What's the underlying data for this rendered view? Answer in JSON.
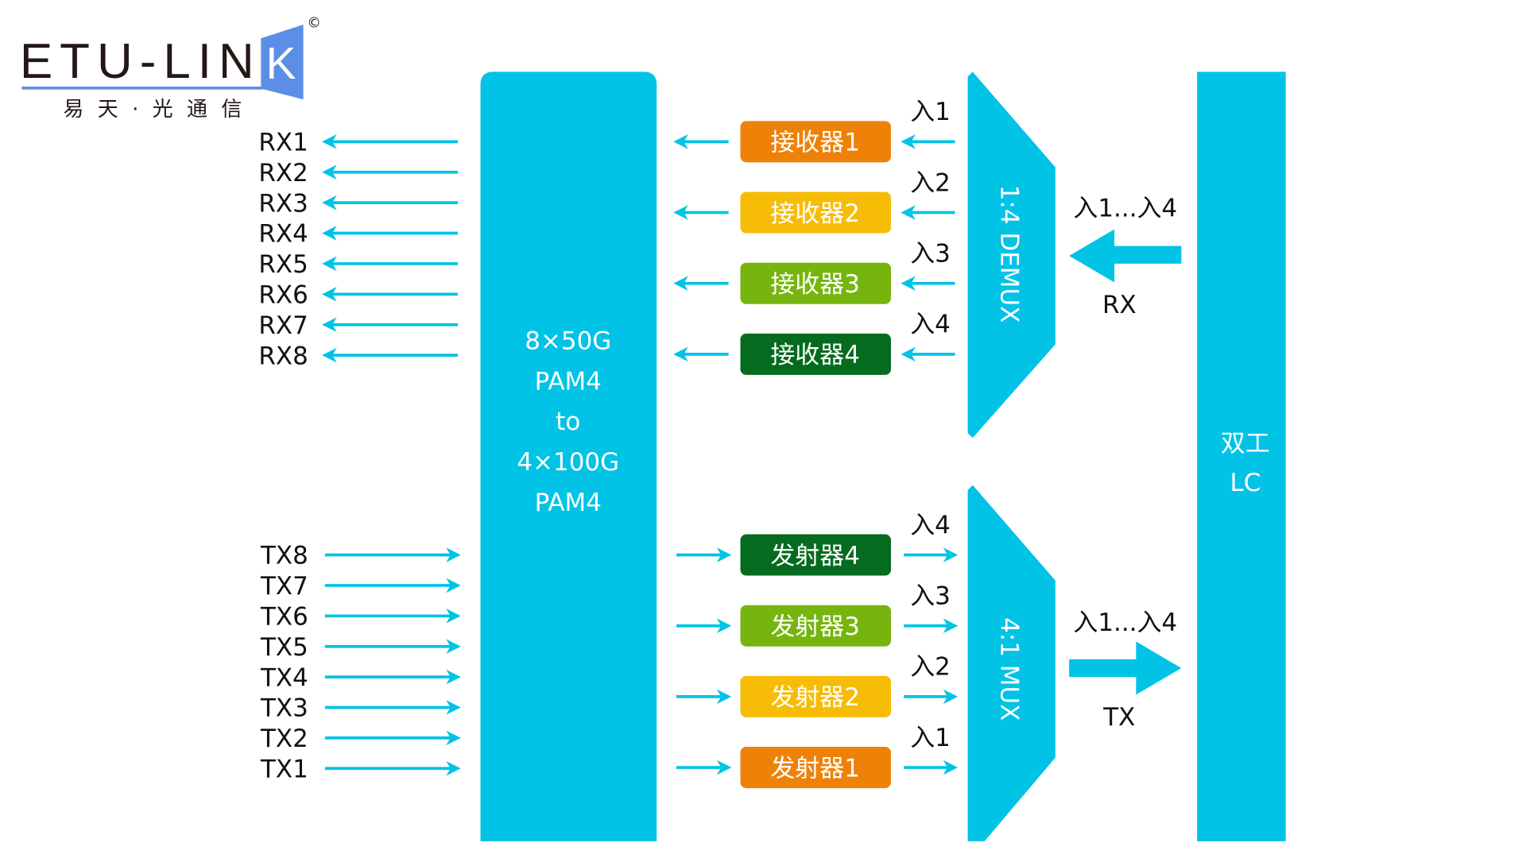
{
  "logo": {
    "brand": "ETU-LIN",
    "brand_k": "K",
    "copyright": "©",
    "tagline": "易天·光通信",
    "accent": "#5b8ee6"
  },
  "colors": {
    "cyan": "#00c3e6",
    "orange": "#ee8208",
    "yellow": "#f7bc06",
    "light_green": "#76b50e",
    "dark_green": "#056b1f"
  },
  "rx_lanes": [
    "RX1",
    "RX2",
    "RX3",
    "RX4",
    "RX5",
    "RX6",
    "RX7",
    "RX8"
  ],
  "tx_lanes": [
    "TX8",
    "TX7",
    "TX6",
    "TX5",
    "TX4",
    "TX3",
    "TX2",
    "TX1"
  ],
  "gearbox": {
    "lines": [
      "8×50G",
      "PAM4",
      "to",
      "4×100G",
      "PAM4"
    ]
  },
  "receivers": [
    {
      "label": "接收器1",
      "wavelength": "入1",
      "color": "#ee8208"
    },
    {
      "label": "接收器2",
      "wavelength": "入2",
      "color": "#f7bc06"
    },
    {
      "label": "接收器3",
      "wavelength": "入3",
      "color": "#76b50e"
    },
    {
      "label": "接收器4",
      "wavelength": "入4",
      "color": "#056b1f"
    }
  ],
  "transmitters": [
    {
      "label": "发射器4",
      "wavelength": "入4",
      "color": "#056b1f"
    },
    {
      "label": "发射器3",
      "wavelength": "入3",
      "color": "#76b50e"
    },
    {
      "label": "发射器2",
      "wavelength": "入2",
      "color": "#f7bc06"
    },
    {
      "label": "发射器1",
      "wavelength": "入1",
      "color": "#ee8208"
    }
  ],
  "demux": {
    "label": "1:4 DEMUX"
  },
  "mux": {
    "label": "4:1 MUX"
  },
  "rx_path": {
    "wavelengths": "入1...入4",
    "label": "RX"
  },
  "tx_path": {
    "wavelengths": "入1...入4",
    "label": "TX"
  },
  "connector": {
    "line1": "双工",
    "line2": "LC"
  }
}
